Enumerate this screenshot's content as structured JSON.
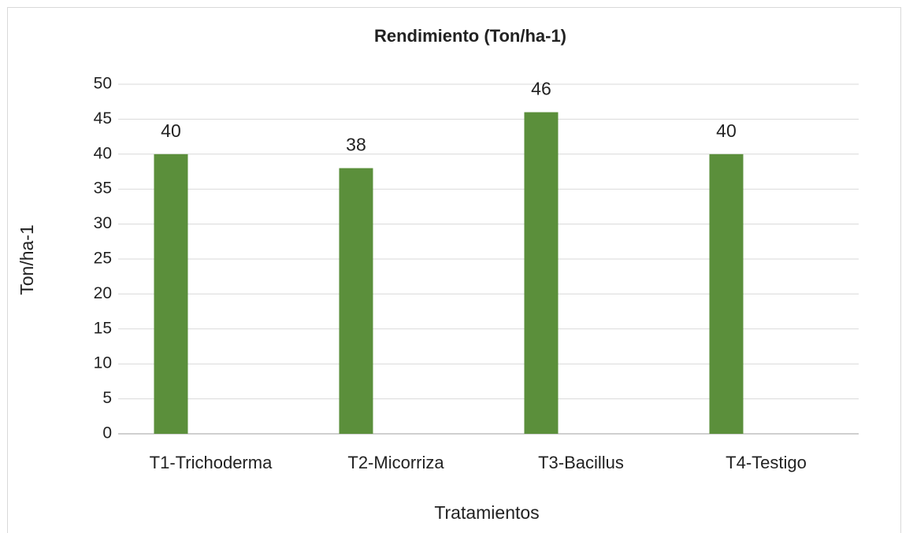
{
  "chart_data": {
    "type": "bar",
    "title": "Rendimiento (Ton/ha-1)",
    "x_label": "Tratamientos",
    "y_label": "Ton/ha-1",
    "categories": [
      "T1-Trichoderma",
      "T2-Micorriza",
      "T3-Bacillus",
      "T4-Testigo"
    ],
    "values": [
      40,
      38,
      46,
      40
    ],
    "color": "#5b8f3b",
    "ylim": [
      0,
      50
    ],
    "yticks": [
      0,
      5,
      10,
      15,
      20,
      25,
      30,
      35,
      40,
      45,
      50
    ],
    "grid": true
  }
}
